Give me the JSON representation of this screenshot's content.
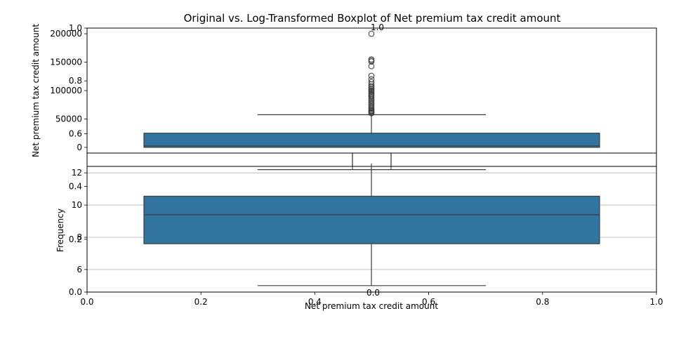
{
  "chart_data": [
    {
      "panel": "top",
      "type": "boxplot",
      "title": "Original vs. Log-Transformed Boxplot of Net premium tax credit amount",
      "ylabel": "Net premium tax credit amount",
      "ylim": [
        -10000,
        210000
      ],
      "yticks": [
        0,
        50000,
        100000,
        150000,
        200000
      ],
      "grid": false,
      "box": {
        "q1": 0,
        "median": 2500,
        "q3": 25000,
        "whisker_low": 0,
        "whisker_high": 57500
      },
      "outliers": [
        60000,
        61500,
        63000,
        64500,
        66000,
        68000,
        70000,
        72500,
        75000,
        77500,
        80000,
        82500,
        85000,
        87500,
        90000,
        92000,
        94000,
        96000,
        98000,
        100000,
        102000,
        104000,
        106000,
        108000,
        111000,
        115000,
        120000,
        126000,
        143000,
        151000,
        153000,
        155000,
        200000
      ]
    },
    {
      "panel": "bottom",
      "type": "boxplot",
      "ylim": [
        4.6,
        12.4
      ],
      "yticks": [
        6,
        8,
        10,
        12
      ],
      "grid": true,
      "box": {
        "q1": 7.6,
        "median": 9.4,
        "q3": 10.55,
        "whisker_low": 5.0,
        "whisker_high": 12.2
      }
    },
    {
      "panel": "overlay",
      "type": "empty-axes",
      "xlabel": "Net premium tax credit amount",
      "ylabel": "Frequency",
      "xticks": [
        "0.0",
        "0.2",
        "0.4",
        "0.6",
        "0.8",
        "1.0"
      ],
      "yticks": [
        "0.0",
        "0.2",
        "0.4",
        "0.6",
        "0.8",
        "1.0"
      ]
    },
    {
      "panel": "small-inset",
      "type": "empty-axes",
      "xticks": [
        "0.0",
        "0.0"
      ],
      "yticks": [
        "1.0"
      ]
    }
  ],
  "colors": {
    "box_fill": "#3274a1",
    "line": "#3d3d3d",
    "grid": "#b0b0b0",
    "axis": "#000000"
  }
}
